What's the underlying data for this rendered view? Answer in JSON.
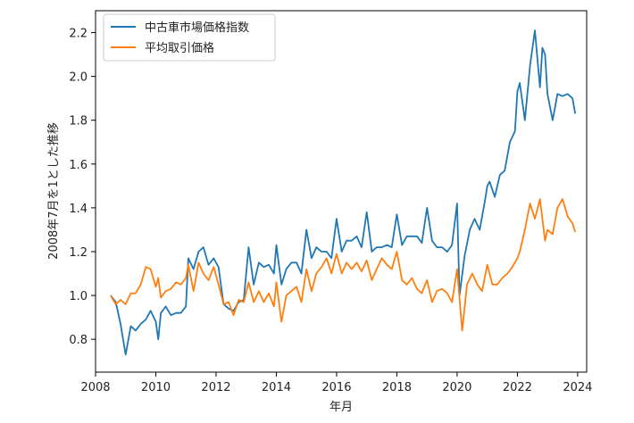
{
  "chart_data": {
    "type": "line",
    "xlabel": "年月",
    "ylabel": "2008年7月を1とした推移",
    "xlim": [
      2008.0,
      2024.3
    ],
    "ylim": [
      0.65,
      2.3
    ],
    "xticks": [
      2008,
      2010,
      2012,
      2014,
      2016,
      2018,
      2020,
      2022,
      2024
    ],
    "yticks": [
      0.8,
      1.0,
      1.2,
      1.4,
      1.6,
      1.8,
      2.0,
      2.2
    ],
    "ytick_labels": [
      "0.8",
      "1.0",
      "1.2",
      "1.4",
      "1.6",
      "1.8",
      "2.0",
      "2.2"
    ],
    "grid": false,
    "legend_position": "top-left",
    "series": [
      {
        "name": "中古車市場価格指数",
        "color": "#1f77b4",
        "points": [
          [
            2008.5,
            1.0
          ],
          [
            2008.67,
            0.97
          ],
          [
            2008.83,
            0.87
          ],
          [
            2009.0,
            0.73
          ],
          [
            2009.17,
            0.86
          ],
          [
            2009.33,
            0.84
          ],
          [
            2009.5,
            0.87
          ],
          [
            2009.67,
            0.89
          ],
          [
            2009.83,
            0.93
          ],
          [
            2010.0,
            0.88
          ],
          [
            2010.08,
            0.8
          ],
          [
            2010.17,
            0.92
          ],
          [
            2010.33,
            0.95
          ],
          [
            2010.5,
            0.91
          ],
          [
            2010.67,
            0.92
          ],
          [
            2010.83,
            0.92
          ],
          [
            2011.0,
            0.95
          ],
          [
            2011.08,
            1.17
          ],
          [
            2011.25,
            1.12
          ],
          [
            2011.42,
            1.2
          ],
          [
            2011.58,
            1.22
          ],
          [
            2011.75,
            1.14
          ],
          [
            2011.92,
            1.17
          ],
          [
            2012.08,
            1.13
          ],
          [
            2012.25,
            0.96
          ],
          [
            2012.42,
            0.94
          ],
          [
            2012.58,
            0.93
          ],
          [
            2012.75,
            0.97
          ],
          [
            2012.92,
            0.98
          ],
          [
            2013.08,
            1.22
          ],
          [
            2013.25,
            1.05
          ],
          [
            2013.42,
            1.15
          ],
          [
            2013.58,
            1.13
          ],
          [
            2013.75,
            1.14
          ],
          [
            2013.92,
            1.1
          ],
          [
            2014.0,
            1.23
          ],
          [
            2014.17,
            1.05
          ],
          [
            2014.33,
            1.12
          ],
          [
            2014.5,
            1.15
          ],
          [
            2014.67,
            1.15
          ],
          [
            2014.83,
            1.1
          ],
          [
            2015.0,
            1.3
          ],
          [
            2015.17,
            1.17
          ],
          [
            2015.33,
            1.22
          ],
          [
            2015.5,
            1.2
          ],
          [
            2015.67,
            1.2
          ],
          [
            2015.83,
            1.17
          ],
          [
            2016.0,
            1.35
          ],
          [
            2016.17,
            1.2
          ],
          [
            2016.33,
            1.25
          ],
          [
            2016.5,
            1.25
          ],
          [
            2016.67,
            1.27
          ],
          [
            2016.83,
            1.22
          ],
          [
            2017.0,
            1.38
          ],
          [
            2017.17,
            1.2
          ],
          [
            2017.33,
            1.22
          ],
          [
            2017.5,
            1.22
          ],
          [
            2017.67,
            1.23
          ],
          [
            2017.83,
            1.22
          ],
          [
            2018.0,
            1.37
          ],
          [
            2018.17,
            1.23
          ],
          [
            2018.33,
            1.27
          ],
          [
            2018.5,
            1.27
          ],
          [
            2018.67,
            1.27
          ],
          [
            2018.83,
            1.24
          ],
          [
            2019.0,
            1.4
          ],
          [
            2019.17,
            1.25
          ],
          [
            2019.33,
            1.22
          ],
          [
            2019.5,
            1.22
          ],
          [
            2019.67,
            1.2
          ],
          [
            2019.83,
            1.23
          ],
          [
            2020.0,
            1.42
          ],
          [
            2020.08,
            1.0
          ],
          [
            2020.25,
            1.18
          ],
          [
            2020.42,
            1.3
          ],
          [
            2020.58,
            1.35
          ],
          [
            2020.75,
            1.3
          ],
          [
            2020.92,
            1.43
          ],
          [
            2021.0,
            1.5
          ],
          [
            2021.08,
            1.52
          ],
          [
            2021.25,
            1.45
          ],
          [
            2021.42,
            1.55
          ],
          [
            2021.58,
            1.57
          ],
          [
            2021.75,
            1.7
          ],
          [
            2021.92,
            1.75
          ],
          [
            2022.0,
            1.93
          ],
          [
            2022.08,
            1.97
          ],
          [
            2022.25,
            1.8
          ],
          [
            2022.42,
            2.05
          ],
          [
            2022.58,
            2.21
          ],
          [
            2022.75,
            1.95
          ],
          [
            2022.83,
            2.13
          ],
          [
            2022.92,
            2.1
          ],
          [
            2023.0,
            1.92
          ],
          [
            2023.17,
            1.8
          ],
          [
            2023.33,
            1.92
          ],
          [
            2023.5,
            1.91
          ],
          [
            2023.67,
            1.92
          ],
          [
            2023.83,
            1.9
          ],
          [
            2023.92,
            1.83
          ]
        ]
      },
      {
        "name": "平均取引価格",
        "color": "#ff7f0e",
        "points": [
          [
            2008.5,
            1.0
          ],
          [
            2008.67,
            0.96
          ],
          [
            2008.83,
            0.98
          ],
          [
            2009.0,
            0.96
          ],
          [
            2009.17,
            1.01
          ],
          [
            2009.33,
            1.01
          ],
          [
            2009.5,
            1.05
          ],
          [
            2009.67,
            1.13
          ],
          [
            2009.83,
            1.12
          ],
          [
            2010.0,
            1.04
          ],
          [
            2010.08,
            1.08
          ],
          [
            2010.17,
            0.99
          ],
          [
            2010.33,
            1.02
          ],
          [
            2010.5,
            1.03
          ],
          [
            2010.67,
            1.06
          ],
          [
            2010.83,
            1.05
          ],
          [
            2011.0,
            1.08
          ],
          [
            2011.08,
            1.14
          ],
          [
            2011.25,
            1.02
          ],
          [
            2011.42,
            1.15
          ],
          [
            2011.58,
            1.1
          ],
          [
            2011.75,
            1.07
          ],
          [
            2011.92,
            1.13
          ],
          [
            2012.08,
            1.05
          ],
          [
            2012.25,
            0.96
          ],
          [
            2012.42,
            0.97
          ],
          [
            2012.58,
            0.91
          ],
          [
            2012.75,
            0.98
          ],
          [
            2012.92,
            0.97
          ],
          [
            2013.08,
            1.06
          ],
          [
            2013.25,
            0.97
          ],
          [
            2013.42,
            1.02
          ],
          [
            2013.58,
            0.97
          ],
          [
            2013.75,
            1.01
          ],
          [
            2013.92,
            0.95
          ],
          [
            2014.0,
            1.06
          ],
          [
            2014.17,
            0.88
          ],
          [
            2014.33,
            1.0
          ],
          [
            2014.5,
            1.02
          ],
          [
            2014.67,
            1.04
          ],
          [
            2014.83,
            0.97
          ],
          [
            2015.0,
            1.12
          ],
          [
            2015.17,
            1.02
          ],
          [
            2015.33,
            1.1
          ],
          [
            2015.5,
            1.13
          ],
          [
            2015.67,
            1.17
          ],
          [
            2015.83,
            1.1
          ],
          [
            2016.0,
            1.19
          ],
          [
            2016.17,
            1.1
          ],
          [
            2016.33,
            1.15
          ],
          [
            2016.5,
            1.12
          ],
          [
            2016.67,
            1.15
          ],
          [
            2016.83,
            1.11
          ],
          [
            2017.0,
            1.16
          ],
          [
            2017.17,
            1.07
          ],
          [
            2017.33,
            1.12
          ],
          [
            2017.5,
            1.17
          ],
          [
            2017.67,
            1.14
          ],
          [
            2017.83,
            1.12
          ],
          [
            2018.0,
            1.2
          ],
          [
            2018.17,
            1.07
          ],
          [
            2018.33,
            1.05
          ],
          [
            2018.5,
            1.08
          ],
          [
            2018.67,
            1.03
          ],
          [
            2018.83,
            1.01
          ],
          [
            2019.0,
            1.07
          ],
          [
            2019.17,
            0.97
          ],
          [
            2019.33,
            1.02
          ],
          [
            2019.5,
            1.03
          ],
          [
            2019.67,
            1.01
          ],
          [
            2019.83,
            0.97
          ],
          [
            2020.0,
            1.12
          ],
          [
            2020.17,
            0.84
          ],
          [
            2020.33,
            1.05
          ],
          [
            2020.5,
            1.1
          ],
          [
            2020.67,
            1.05
          ],
          [
            2020.83,
            1.02
          ],
          [
            2021.0,
            1.14
          ],
          [
            2021.17,
            1.05
          ],
          [
            2021.33,
            1.05
          ],
          [
            2021.5,
            1.08
          ],
          [
            2021.67,
            1.1
          ],
          [
            2021.83,
            1.13
          ],
          [
            2022.0,
            1.17
          ],
          [
            2022.08,
            1.2
          ],
          [
            2022.25,
            1.3
          ],
          [
            2022.42,
            1.42
          ],
          [
            2022.58,
            1.35
          ],
          [
            2022.75,
            1.44
          ],
          [
            2022.92,
            1.25
          ],
          [
            2023.0,
            1.3
          ],
          [
            2023.17,
            1.28
          ],
          [
            2023.33,
            1.4
          ],
          [
            2023.5,
            1.44
          ],
          [
            2023.67,
            1.36
          ],
          [
            2023.83,
            1.33
          ],
          [
            2023.92,
            1.29
          ]
        ]
      }
    ]
  }
}
